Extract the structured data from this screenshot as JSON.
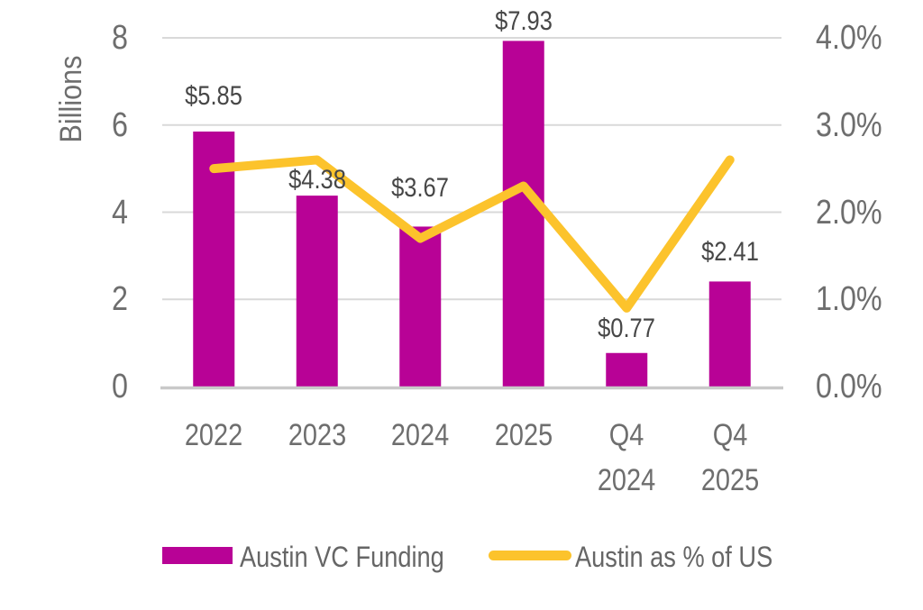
{
  "chart_data": {
    "type": "bar+line combo",
    "categories": [
      "2022",
      "2023",
      "2024",
      "2025",
      "Q4 2024",
      "Q4 2025"
    ],
    "category_label_lines": [
      [
        "2022"
      ],
      [
        "2023"
      ],
      [
        "2024"
      ],
      [
        "2025"
      ],
      [
        "Q4",
        "2024"
      ],
      [
        "Q4",
        "2025"
      ]
    ],
    "series": [
      {
        "name": "Austin VC Funding",
        "type": "bar",
        "axis": "left",
        "values": [
          5.85,
          4.38,
          3.67,
          7.93,
          0.77,
          2.41
        ],
        "data_labels": [
          "$5.85",
          "$4.38",
          "$3.67",
          "$7.93",
          "$0.77",
          "$2.41"
        ],
        "color": "#B80296"
      },
      {
        "name": "Austin as % of US",
        "type": "line",
        "axis": "right",
        "values": [
          2.5,
          2.6,
          1.7,
          2.3,
          0.9,
          2.6
        ],
        "color": "#FCC32C"
      }
    ],
    "left_axis": {
      "title": "Billions",
      "tick_values": [
        0,
        2,
        4,
        6,
        8
      ],
      "tick_labels": [
        "0",
        "2",
        "4",
        "6",
        "8"
      ],
      "range": [
        0,
        8
      ]
    },
    "right_axis": {
      "tick_values": [
        0,
        1,
        2,
        3,
        4
      ],
      "tick_labels": [
        "0.0%",
        "1.0%",
        "2.0%",
        "3.0%",
        "4.0%"
      ],
      "range": [
        0,
        4
      ]
    },
    "grid": true,
    "legend_position": "bottom"
  },
  "legend": {
    "items": [
      {
        "label": "Austin VC Funding",
        "swatch": "bar",
        "color": "#B80296"
      },
      {
        "label": "Austin as % of US",
        "swatch": "line",
        "color": "#FCC32C"
      }
    ]
  },
  "colors": {
    "background": "#FFFFFF",
    "bar": "#B80296",
    "line": "#FCC32C",
    "gridline": "#D9D9D9",
    "axis_line": "#C9C9C9",
    "tick_text": "#6E6E6E",
    "data_label_text": "#474747",
    "legend_text": "#666666"
  }
}
